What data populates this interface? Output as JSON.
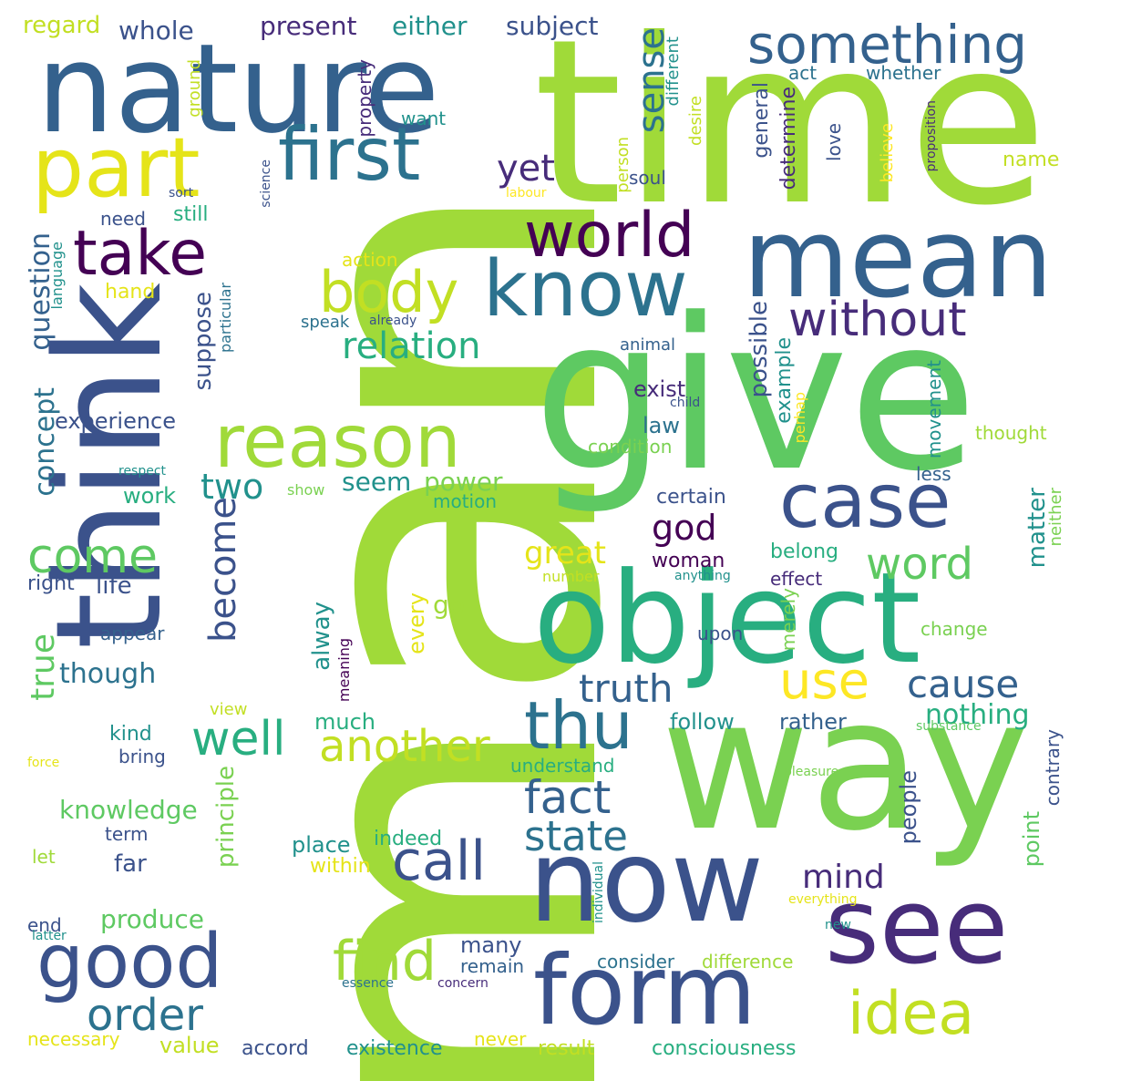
{
  "palette": {
    "dark_purple": "#440154",
    "indigo": "#472c7a",
    "slate_blue": "#3b528b",
    "steel_blue": "#34618d",
    "blue_teal": "#2c728e",
    "teal": "#21918c",
    "sea_green": "#28ae80",
    "green": "#5ec962",
    "light_green": "#7ad151",
    "lime": "#a0da39",
    "yellow_green": "#c2df23",
    "yellow": "#e5e419",
    "gold": "#fde725"
  },
  "words": [
    {
      "text": "man",
      "color": "#a0da39"
    },
    {
      "text": "time",
      "color": "#a0da39"
    },
    {
      "text": "give",
      "color": "#5ec962"
    },
    {
      "text": "think",
      "color": "#3b528b"
    },
    {
      "text": "way",
      "color": "#7ad151"
    },
    {
      "text": "nature",
      "color": "#34618d"
    },
    {
      "text": "object",
      "color": "#28ae80"
    },
    {
      "text": "mean",
      "color": "#34618d"
    },
    {
      "text": "now",
      "color": "#3b528b"
    },
    {
      "text": "see",
      "color": "#472c7a"
    },
    {
      "text": "form",
      "color": "#3b528b"
    },
    {
      "text": "know",
      "color": "#2c728e"
    },
    {
      "text": "part",
      "color": "#e5e419"
    },
    {
      "text": "first",
      "color": "#2c728e"
    },
    {
      "text": "reason",
      "color": "#a0da39"
    },
    {
      "text": "something",
      "color": "#34618d"
    },
    {
      "text": "case",
      "color": "#3b528b"
    },
    {
      "text": "good",
      "color": "#3b528b"
    },
    {
      "text": "world",
      "color": "#440154"
    },
    {
      "text": "take",
      "color": "#440154"
    },
    {
      "text": "body",
      "color": "#c2df23"
    },
    {
      "text": "idea",
      "color": "#c2df23"
    },
    {
      "text": "use",
      "color": "#fde725"
    },
    {
      "text": "thu",
      "color": "#2c728e"
    },
    {
      "text": "call",
      "color": "#3b528b"
    },
    {
      "text": "find",
      "color": "#a0da39"
    },
    {
      "text": "without",
      "color": "#472c7a"
    },
    {
      "text": "well",
      "color": "#28ae80"
    },
    {
      "text": "fact",
      "color": "#34618d"
    },
    {
      "text": "state",
      "color": "#2c728e"
    },
    {
      "text": "another",
      "color": "#c2df23"
    },
    {
      "text": "order",
      "color": "#2c728e"
    },
    {
      "text": "come",
      "color": "#5ec962"
    },
    {
      "text": "word",
      "color": "#5ec962"
    },
    {
      "text": "cause",
      "color": "#34618d"
    },
    {
      "text": "truth",
      "color": "#34618d"
    },
    {
      "text": "relation",
      "color": "#28ae80"
    },
    {
      "text": "sense",
      "color": "#2c728e"
    },
    {
      "text": "become",
      "color": "#3b528b"
    },
    {
      "text": "two",
      "color": "#21918c"
    },
    {
      "text": "true",
      "color": "#5ec962"
    },
    {
      "text": "god",
      "color": "#440154"
    },
    {
      "text": "mind",
      "color": "#472c7a"
    },
    {
      "text": "yet",
      "color": "#472c7a"
    },
    {
      "text": "great",
      "color": "#e5e419"
    },
    {
      "text": "question",
      "color": "#34618d"
    },
    {
      "text": "concept",
      "color": "#2c728e"
    },
    {
      "text": "nothing",
      "color": "#28ae80"
    },
    {
      "text": "knowledge",
      "color": "#5ec962"
    },
    {
      "text": "though",
      "color": "#2c728e"
    },
    {
      "text": "produce",
      "color": "#5ec962"
    },
    {
      "text": "seem",
      "color": "#21918c"
    },
    {
      "text": "power",
      "color": "#7ad151"
    },
    {
      "text": "subject",
      "color": "#3b528b"
    },
    {
      "text": "either",
      "color": "#21918c"
    },
    {
      "text": "present",
      "color": "#472c7a"
    },
    {
      "text": "whole",
      "color": "#3b528b"
    },
    {
      "text": "regard",
      "color": "#c2df23"
    },
    {
      "text": "matter",
      "color": "#21918c"
    },
    {
      "text": "possible",
      "color": "#3b528b"
    },
    {
      "text": "suppose",
      "color": "#3b528b"
    },
    {
      "text": "principle",
      "color": "#7ad151"
    },
    {
      "text": "experience",
      "color": "#3b528b"
    },
    {
      "text": "life",
      "color": "#3b528b"
    },
    {
      "text": "work",
      "color": "#28ae80"
    },
    {
      "text": "alway",
      "color": "#21918c"
    },
    {
      "text": "much",
      "color": "#28ae80"
    },
    {
      "text": "follow",
      "color": "#21918c"
    },
    {
      "text": "rather",
      "color": "#34618d"
    },
    {
      "text": "point",
      "color": "#5ec962"
    },
    {
      "text": "people",
      "color": "#3b528b"
    },
    {
      "text": "many",
      "color": "#3b528b"
    },
    {
      "text": "place",
      "color": "#21918c"
    },
    {
      "text": "indeed",
      "color": "#28ae80"
    },
    {
      "text": "within",
      "color": "#e5e419"
    },
    {
      "text": "law",
      "color": "#2c728e"
    },
    {
      "text": "exist",
      "color": "#472c7a"
    },
    {
      "text": "certain",
      "color": "#3b528b"
    },
    {
      "text": "woman",
      "color": "#440154"
    },
    {
      "text": "general",
      "color": "#3b528b"
    },
    {
      "text": "determine",
      "color": "#472c7a"
    },
    {
      "text": "example",
      "color": "#21918c"
    },
    {
      "text": "belong",
      "color": "#28ae80"
    },
    {
      "text": "effect",
      "color": "#472c7a"
    },
    {
      "text": "movement",
      "color": "#21918c"
    },
    {
      "text": "less",
      "color": "#34618d"
    },
    {
      "text": "thought",
      "color": "#a0da39"
    },
    {
      "text": "contrary",
      "color": "#3b528b"
    },
    {
      "text": "neither",
      "color": "#7ad151"
    },
    {
      "text": "change",
      "color": "#7ad151"
    },
    {
      "text": "upon",
      "color": "#3b528b"
    },
    {
      "text": "merely",
      "color": "#7ad151"
    },
    {
      "text": "name",
      "color": "#c2df23"
    },
    {
      "text": "act",
      "color": "#2c728e"
    },
    {
      "text": "whether",
      "color": "#2c728e"
    },
    {
      "text": "soul",
      "color": "#3b528b"
    },
    {
      "text": "person",
      "color": "#c2df23"
    },
    {
      "text": "desire",
      "color": "#c2df23"
    },
    {
      "text": "different",
      "color": "#21918c"
    },
    {
      "text": "love",
      "color": "#3b528b"
    },
    {
      "text": "believe",
      "color": "#fde725"
    },
    {
      "text": "proposition",
      "color": "#472c7a"
    },
    {
      "text": "want",
      "color": "#21918c"
    },
    {
      "text": "property",
      "color": "#472c7a"
    },
    {
      "text": "ground",
      "color": "#c2df23"
    },
    {
      "text": "labour",
      "color": "#fde725"
    },
    {
      "text": "sort",
      "color": "#3b528b"
    },
    {
      "text": "science",
      "color": "#3b528b"
    },
    {
      "text": "need",
      "color": "#3b528b"
    },
    {
      "text": "still",
      "color": "#28ae80"
    },
    {
      "text": "hand",
      "color": "#e5e419"
    },
    {
      "text": "action",
      "color": "#e5e419"
    },
    {
      "text": "language",
      "color": "#21918c"
    },
    {
      "text": "particular",
      "color": "#2c728e"
    },
    {
      "text": "speak",
      "color": "#2c728e"
    },
    {
      "text": "already",
      "color": "#3b528b"
    },
    {
      "text": "animal",
      "color": "#34618d"
    },
    {
      "text": "child",
      "color": "#3b528b"
    },
    {
      "text": "condition",
      "color": "#7ad151"
    },
    {
      "text": "motion",
      "color": "#28ae80"
    },
    {
      "text": "show",
      "color": "#7ad151"
    },
    {
      "text": "respect",
      "color": "#21918c"
    },
    {
      "text": "perhap",
      "color": "#fde725"
    },
    {
      "text": "number",
      "color": "#c2df23"
    },
    {
      "text": "anything",
      "color": "#21918c"
    },
    {
      "text": "right",
      "color": "#3b528b"
    },
    {
      "text": "appear",
      "color": "#34618d"
    },
    {
      "text": "go",
      "color": "#a0da39"
    },
    {
      "text": "every",
      "color": "#e5e419"
    },
    {
      "text": "meaning",
      "color": "#440154"
    },
    {
      "text": "view",
      "color": "#c2df23"
    },
    {
      "text": "kind",
      "color": "#21918c"
    },
    {
      "text": "bring",
      "color": "#3b528b"
    },
    {
      "text": "force",
      "color": "#e5e419"
    },
    {
      "text": "understand",
      "color": "#28ae80"
    },
    {
      "text": "substance",
      "color": "#5ec962"
    },
    {
      "text": "pleasure",
      "color": "#7ad151"
    },
    {
      "text": "term",
      "color": "#3b528b"
    },
    {
      "text": "let",
      "color": "#a0da39"
    },
    {
      "text": "far",
      "color": "#3b528b"
    },
    {
      "text": "end",
      "color": "#3b528b"
    },
    {
      "text": "latter",
      "color": "#21918c"
    },
    {
      "text": "individual",
      "color": "#21918c"
    },
    {
      "text": "everything",
      "color": "#e5e419"
    },
    {
      "text": "consider",
      "color": "#2c728e"
    },
    {
      "text": "difference",
      "color": "#a0da39"
    },
    {
      "text": "remain",
      "color": "#34618d"
    },
    {
      "text": "concern",
      "color": "#472c7a"
    },
    {
      "text": "essence",
      "color": "#2c728e"
    },
    {
      "text": "new",
      "color": "#21918c"
    },
    {
      "text": "necessary",
      "color": "#e5e419"
    },
    {
      "text": "value",
      "color": "#c2df23"
    },
    {
      "text": "accord",
      "color": "#3b528b"
    },
    {
      "text": "existence",
      "color": "#21918c"
    },
    {
      "text": "never",
      "color": "#e5e419"
    },
    {
      "text": "result",
      "color": "#c2df23"
    },
    {
      "text": "consciousness",
      "color": "#28ae80"
    }
  ]
}
